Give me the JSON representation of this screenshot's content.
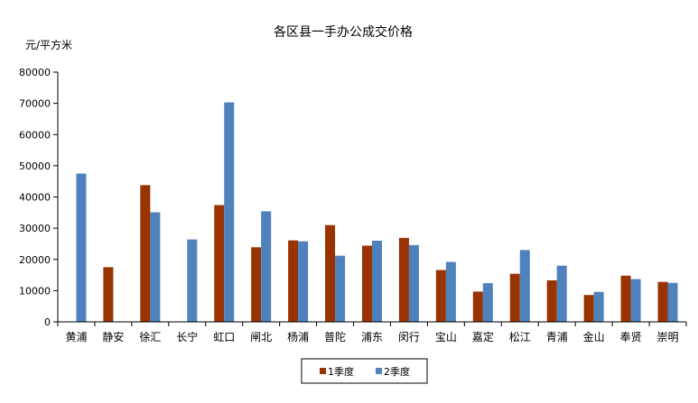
{
  "chart_data": {
    "type": "bar",
    "title": "各区县一手办公成交价格",
    "ylabel": "元/平方米",
    "xlabel": "",
    "ylim": [
      0,
      80000
    ],
    "yticks": [
      0,
      10000,
      20000,
      30000,
      40000,
      50000,
      60000,
      70000,
      80000
    ],
    "grid": false,
    "legend_position": "bottom-center",
    "categories": [
      "黄浦",
      "静安",
      "徐汇",
      "长宁",
      "虹口",
      "闸北",
      "杨浦",
      "普陀",
      "浦东",
      "闵行",
      "宝山",
      "嘉定",
      "松江",
      "青浦",
      "金山",
      "奉贤",
      "崇明"
    ],
    "series": [
      {
        "name": "1季度",
        "color": "#993300",
        "values": [
          null,
          17500,
          43800,
          null,
          37400,
          23900,
          26100,
          31000,
          24400,
          26900,
          16600,
          9700,
          15400,
          13300,
          8600,
          14800,
          12800
        ]
      },
      {
        "name": "2季度",
        "color": "#4f81bd",
        "values": [
          47500,
          null,
          35100,
          26400,
          70300,
          35400,
          25800,
          21200,
          26000,
          24600,
          19200,
          12400,
          23000,
          18000,
          9600,
          13700,
          12500
        ]
      }
    ]
  }
}
